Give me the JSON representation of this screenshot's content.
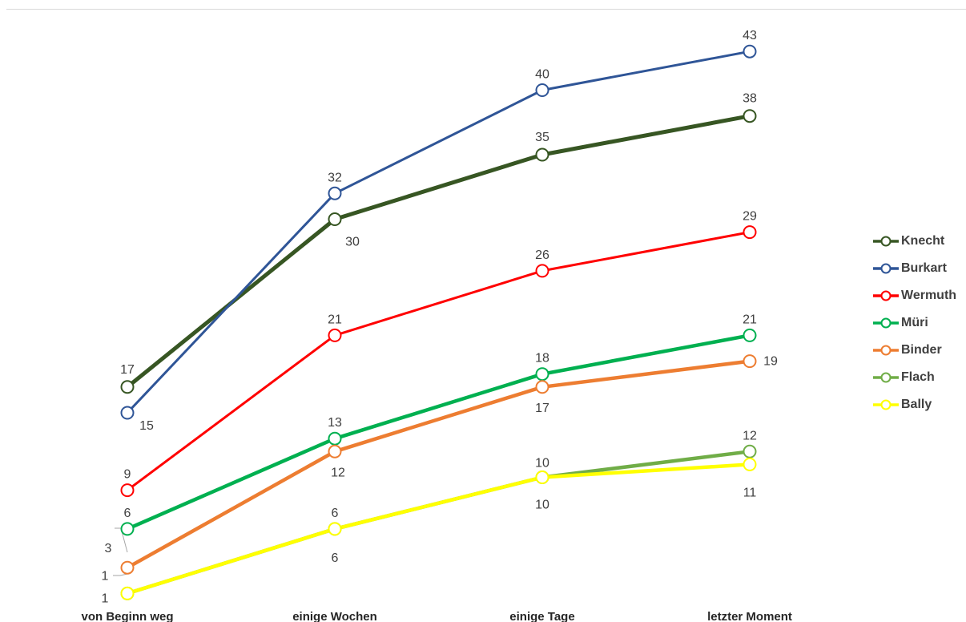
{
  "chart_data": {
    "type": "line",
    "categories": [
      "von Beginn weg",
      "einige Wochen",
      "einige Tage",
      "letzter Moment"
    ],
    "ylim": [
      0,
      45
    ],
    "grid": false,
    "legend_position": "right",
    "series": [
      {
        "name": "Knecht",
        "color": "#375623",
        "values": [
          17,
          30,
          35,
          38
        ],
        "labels": [
          "17",
          "30",
          "35",
          "38"
        ]
      },
      {
        "name": "Burkart",
        "color": "#2F5597",
        "values": [
          15,
          32,
          40,
          43
        ],
        "labels": [
          "15",
          "32",
          "40",
          "43"
        ]
      },
      {
        "name": "Wermuth",
        "color": "#FF0000",
        "values": [
          9,
          21,
          26,
          29
        ],
        "labels": [
          "9",
          "21",
          "26",
          "29"
        ]
      },
      {
        "name": "Müri",
        "color": "#00B050",
        "values": [
          6,
          13,
          18,
          21
        ],
        "labels": [
          "6",
          "13",
          "18",
          "21"
        ]
      },
      {
        "name": "Binder",
        "color": "#ED7D31",
        "values": [
          3,
          12,
          17,
          19
        ],
        "labels": [
          "3",
          "12",
          "17",
          "19"
        ]
      },
      {
        "name": "Flach",
        "color": "#70AD47",
        "values": [
          1,
          6,
          10,
          12
        ],
        "labels": [
          "1",
          "6",
          "10",
          "12"
        ]
      },
      {
        "name": "Bally",
        "color": "#FFFF00",
        "values": [
          1,
          6,
          10,
          11
        ],
        "labels": [
          "1",
          "6",
          "10",
          "11"
        ]
      }
    ]
  }
}
